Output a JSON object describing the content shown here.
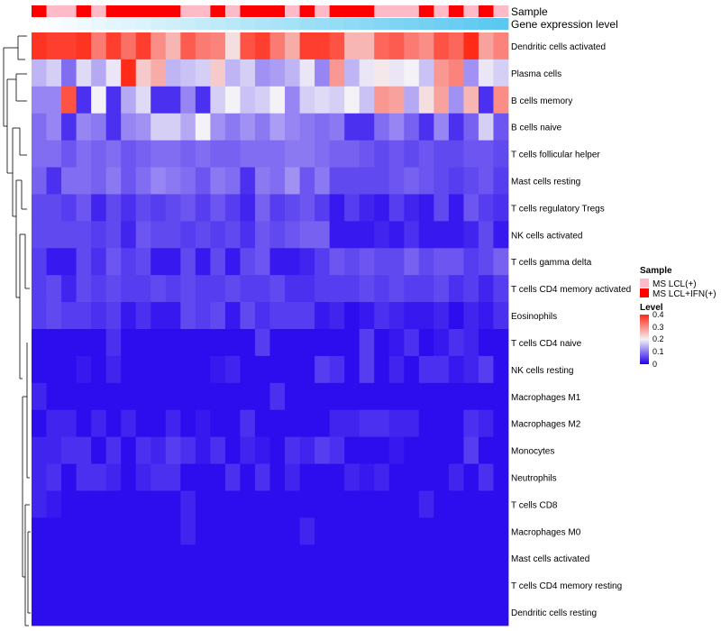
{
  "chart_data": {
    "type": "heatmap",
    "title": "",
    "annotation_titles": {
      "sample": "Sample",
      "expression": "Gene expression level"
    },
    "color_scale": {
      "title": "Level",
      "min": 0,
      "max": 0.4,
      "midpoint": 0.2,
      "low": "#2200ee",
      "mid": "#f4f2f6",
      "high": "#ff2a18",
      "ticks": [
        "0.4",
        "0.3",
        "0.2",
        "0.1",
        "0"
      ]
    },
    "legend_sample": {
      "title": "Sample",
      "entries": [
        {
          "label": "MS LCL(+)",
          "color": "#ffbac8"
        },
        {
          "label": "MS LCL+IFN(+)",
          "color": "#ff0000"
        }
      ]
    },
    "expression_gradient": [
      "#ffffff",
      "#5ac8f0"
    ],
    "sample_groups": [
      1,
      0,
      0,
      1,
      0,
      1,
      1,
      1,
      1,
      1,
      0,
      0,
      1,
      0,
      1,
      1,
      1,
      0,
      1,
      0,
      1,
      1,
      1,
      0,
      0,
      0,
      1,
      0,
      1,
      0,
      1,
      0
    ],
    "rows": [
      "Dendritic cells activated",
      "Plasma cells",
      "B cells memory",
      "B cells naive",
      "T cells follicular helper",
      "Mast cells resting",
      "T cells regulatory  Tregs",
      "NK cells activated",
      "T cells gamma delta",
      "T cells CD4 memory activated",
      "Eosinophils",
      "T cells CD4 naive",
      "NK cells resting",
      "Macrophages M1",
      "Macrophages M2",
      "Monocytes",
      "Neutrophils",
      "T cells CD8",
      "Macrophages M0",
      "Mast cells activated",
      "T cells CD4 memory resting",
      "Dendritic cells resting"
    ],
    "values": [
      [
        0.39,
        0.38,
        0.38,
        0.39,
        0.32,
        0.38,
        0.33,
        0.38,
        0.3,
        0.26,
        0.35,
        0.32,
        0.31,
        0.22,
        0.36,
        0.38,
        0.32,
        0.27,
        0.38,
        0.38,
        0.36,
        0.26,
        0.26,
        0.34,
        0.35,
        0.32,
        0.3,
        0.36,
        0.34,
        0.4,
        0.28,
        0.31
      ],
      [
        0.15,
        0.17,
        0.09,
        0.18,
        0.14,
        0.19,
        0.4,
        0.24,
        0.27,
        0.15,
        0.16,
        0.17,
        0.24,
        0.15,
        0.17,
        0.12,
        0.13,
        0.15,
        0.19,
        0.11,
        0.29,
        0.15,
        0.19,
        0.21,
        0.19,
        0.2,
        0.16,
        0.29,
        0.31,
        0.12,
        0.19,
        0.17
      ],
      [
        0.11,
        0.11,
        0.36,
        0.04,
        0.2,
        0.04,
        0.14,
        0.18,
        0.04,
        0.04,
        0.11,
        0.04,
        0.17,
        0.2,
        0.16,
        0.17,
        0.2,
        0.11,
        0.17,
        0.18,
        0.17,
        0.2,
        0.16,
        0.29,
        0.28,
        0.14,
        0.22,
        0.28,
        0.12,
        0.26,
        0.04,
        0.3
      ],
      [
        0.09,
        0.11,
        0.04,
        0.11,
        0.1,
        0.04,
        0.11,
        0.12,
        0.17,
        0.17,
        0.14,
        0.2,
        0.12,
        0.1,
        0.12,
        0.1,
        0.13,
        0.11,
        0.1,
        0.09,
        0.1,
        0.04,
        0.04,
        0.09,
        0.11,
        0.08,
        0.04,
        0.11,
        0.04,
        0.08,
        0.17,
        0.07
      ],
      [
        0.09,
        0.09,
        0.07,
        0.09,
        0.08,
        0.09,
        0.07,
        0.08,
        0.09,
        0.09,
        0.08,
        0.09,
        0.08,
        0.08,
        0.09,
        0.09,
        0.09,
        0.1,
        0.1,
        0.09,
        0.08,
        0.08,
        0.07,
        0.06,
        0.07,
        0.06,
        0.07,
        0.06,
        0.06,
        0.07,
        0.07,
        0.06
      ],
      [
        0.08,
        0.04,
        0.09,
        0.09,
        0.08,
        0.1,
        0.07,
        0.09,
        0.11,
        0.1,
        0.09,
        0.07,
        0.1,
        0.09,
        0.04,
        0.1,
        0.09,
        0.12,
        0.07,
        0.1,
        0.06,
        0.06,
        0.06,
        0.06,
        0.07,
        0.08,
        0.07,
        0.06,
        0.05,
        0.06,
        0.07,
        0.05
      ],
      [
        0.06,
        0.06,
        0.05,
        0.07,
        0.03,
        0.06,
        0.04,
        0.06,
        0.05,
        0.06,
        0.07,
        0.05,
        0.07,
        0.05,
        0.03,
        0.08,
        0.05,
        0.06,
        0.07,
        0.05,
        0.02,
        0.05,
        0.03,
        0.02,
        0.05,
        0.03,
        0.02,
        0.06,
        0.02,
        0.07,
        0.05,
        0.04
      ],
      [
        0.06,
        0.06,
        0.06,
        0.06,
        0.05,
        0.06,
        0.03,
        0.07,
        0.06,
        0.06,
        0.05,
        0.06,
        0.05,
        0.06,
        0.04,
        0.07,
        0.06,
        0.07,
        0.08,
        0.08,
        0.02,
        0.02,
        0.02,
        0.03,
        0.02,
        0.04,
        0.02,
        0.02,
        0.02,
        0.03,
        0.06,
        0.02
      ],
      [
        0.05,
        0.02,
        0.02,
        0.06,
        0.04,
        0.07,
        0.05,
        0.06,
        0.02,
        0.02,
        0.06,
        0.02,
        0.06,
        0.02,
        0.06,
        0.07,
        0.02,
        0.02,
        0.03,
        0.05,
        0.07,
        0.06,
        0.07,
        0.06,
        0.06,
        0.08,
        0.06,
        0.07,
        0.07,
        0.05,
        0.06,
        0.08
      ],
      [
        0.05,
        0.06,
        0.03,
        0.06,
        0.05,
        0.06,
        0.05,
        0.05,
        0.06,
        0.05,
        0.06,
        0.05,
        0.05,
        0.06,
        0.05,
        0.05,
        0.06,
        0.04,
        0.04,
        0.05,
        0.05,
        0.05,
        0.06,
        0.05,
        0.06,
        0.05,
        0.05,
        0.06,
        0.04,
        0.05,
        0.03,
        0.05
      ],
      [
        0.05,
        0.06,
        0.05,
        0.05,
        0.04,
        0.05,
        0.02,
        0.04,
        0.02,
        0.02,
        0.06,
        0.05,
        0.06,
        0.02,
        0.06,
        0.04,
        0.05,
        0.05,
        0.05,
        0.02,
        0.03,
        0.01,
        0.02,
        0.04,
        0.03,
        0.02,
        0.02,
        0.03,
        0.01,
        0.03,
        0.02,
        0.04
      ],
      [
        0.01,
        0.01,
        0.01,
        0.01,
        0.01,
        0.04,
        0.01,
        0.01,
        0.01,
        0.01,
        0.01,
        0.01,
        0.01,
        0.01,
        0.01,
        0.05,
        0.01,
        0.01,
        0.01,
        0.01,
        0.01,
        0.01,
        0.05,
        0.01,
        0.02,
        0.04,
        0.01,
        0.02,
        0.04,
        0.03,
        0.01,
        0.01
      ],
      [
        0.01,
        0.01,
        0.01,
        0.02,
        0.01,
        0.03,
        0.01,
        0.01,
        0.01,
        0.01,
        0.01,
        0.01,
        0.02,
        0.03,
        0.01,
        0.01,
        0.01,
        0.01,
        0.01,
        0.05,
        0.04,
        0.01,
        0.05,
        0.01,
        0.03,
        0.01,
        0.04,
        0.04,
        0.02,
        0.03,
        0.05,
        0.01
      ],
      [
        0.03,
        0.01,
        0.01,
        0.01,
        0.01,
        0.01,
        0.01,
        0.01,
        0.01,
        0.01,
        0.01,
        0.01,
        0.01,
        0.01,
        0.01,
        0.01,
        0.04,
        0.01,
        0.01,
        0.01,
        0.01,
        0.01,
        0.01,
        0.01,
        0.01,
        0.01,
        0.01,
        0.01,
        0.01,
        0.01,
        0.01,
        0.01
      ],
      [
        0.01,
        0.03,
        0.03,
        0.01,
        0.03,
        0.01,
        0.03,
        0.01,
        0.01,
        0.03,
        0.01,
        0.02,
        0.01,
        0.01,
        0.04,
        0.01,
        0.01,
        0.01,
        0.01,
        0.01,
        0.03,
        0.03,
        0.04,
        0.04,
        0.03,
        0.03,
        0.01,
        0.01,
        0.01,
        0.04,
        0.03,
        0.01
      ],
      [
        0.03,
        0.03,
        0.04,
        0.04,
        0.01,
        0.04,
        0.01,
        0.04,
        0.03,
        0.05,
        0.04,
        0.02,
        0.04,
        0.01,
        0.03,
        0.02,
        0.01,
        0.04,
        0.03,
        0.05,
        0.04,
        0.01,
        0.01,
        0.01,
        0.02,
        0.01,
        0.01,
        0.01,
        0.01,
        0.05,
        0.01,
        0.01
      ],
      [
        0.03,
        0.04,
        0.01,
        0.04,
        0.04,
        0.03,
        0.01,
        0.03,
        0.04,
        0.04,
        0.01,
        0.01,
        0.01,
        0.04,
        0.01,
        0.04,
        0.01,
        0.03,
        0.01,
        0.01,
        0.01,
        0.03,
        0.02,
        0.03,
        0.01,
        0.01,
        0.01,
        0.01,
        0.03,
        0.01,
        0.04,
        0.01
      ],
      [
        0.03,
        0.02,
        0.01,
        0.01,
        0.01,
        0.01,
        0.01,
        0.01,
        0.01,
        0.01,
        0.03,
        0.01,
        0.01,
        0.01,
        0.01,
        0.01,
        0.01,
        0.01,
        0.01,
        0.01,
        0.01,
        0.01,
        0.01,
        0.01,
        0.01,
        0.01,
        0.03,
        0.01,
        0.01,
        0.01,
        0.01,
        0.01
      ],
      [
        0.01,
        0.01,
        0.01,
        0.01,
        0.01,
        0.01,
        0.01,
        0.01,
        0.01,
        0.01,
        0.03,
        0.01,
        0.01,
        0.01,
        0.01,
        0.01,
        0.01,
        0.01,
        0.03,
        0.01,
        0.01,
        0.01,
        0.01,
        0.01,
        0.01,
        0.01,
        0.01,
        0.01,
        0.01,
        0.01,
        0.01,
        0.01
      ],
      [
        0.01,
        0.01,
        0.01,
        0.01,
        0.01,
        0.01,
        0.01,
        0.01,
        0.01,
        0.01,
        0.01,
        0.01,
        0.01,
        0.01,
        0.01,
        0.01,
        0.01,
        0.01,
        0.01,
        0.01,
        0.01,
        0.01,
        0.01,
        0.01,
        0.01,
        0.01,
        0.01,
        0.01,
        0.01,
        0.01,
        0.01,
        0.01
      ],
      [
        0.01,
        0.01,
        0.01,
        0.01,
        0.01,
        0.01,
        0.01,
        0.01,
        0.01,
        0.01,
        0.01,
        0.01,
        0.01,
        0.01,
        0.01,
        0.01,
        0.01,
        0.01,
        0.01,
        0.01,
        0.01,
        0.01,
        0.01,
        0.01,
        0.01,
        0.01,
        0.01,
        0.01,
        0.01,
        0.01,
        0.01,
        0.01
      ],
      [
        0.01,
        0.01,
        0.01,
        0.01,
        0.01,
        0.01,
        0.01,
        0.01,
        0.01,
        0.01,
        0.01,
        0.01,
        0.01,
        0.01,
        0.01,
        0.01,
        0.01,
        0.01,
        0.01,
        0.01,
        0.01,
        0.01,
        0.01,
        0.01,
        0.01,
        0.01,
        0.01,
        0.01,
        0.01,
        0.01,
        0.01,
        0.01
      ]
    ]
  }
}
